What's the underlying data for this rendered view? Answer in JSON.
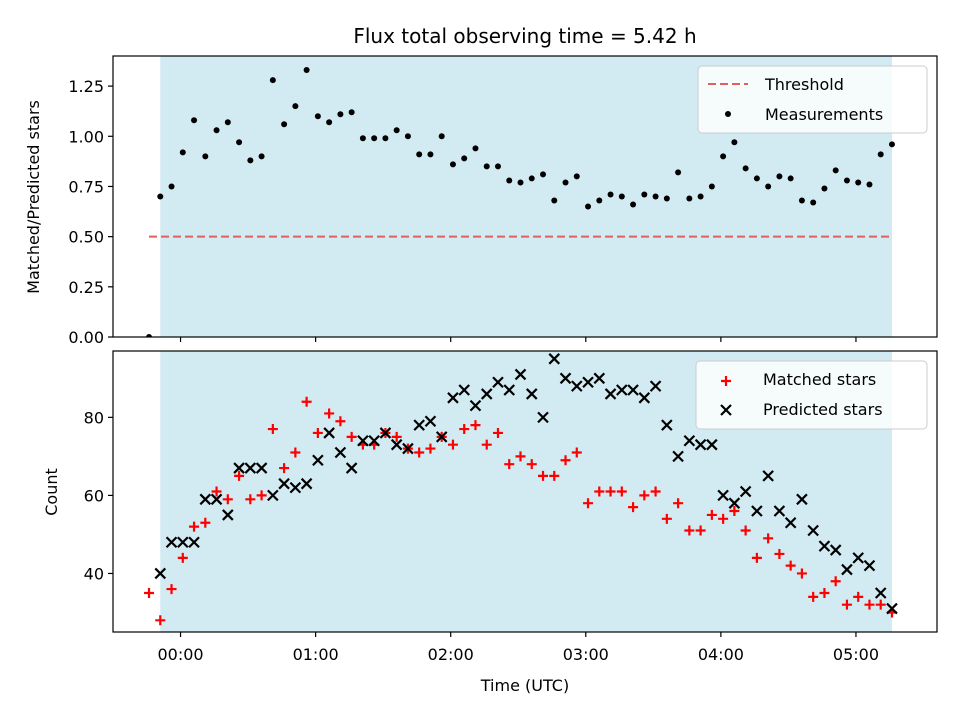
{
  "figure": {
    "title": "Flux total observing time = 5.42 h",
    "xlabel": "Time (UTC)",
    "colors": {
      "shade": "#add8e6",
      "threshold": "#e06060",
      "matched": "#ff0000",
      "predicted": "#000000",
      "measurement": "#000000"
    },
    "xticks": [
      {
        "t": 0,
        "label": "00:00"
      },
      {
        "t": 60,
        "label": "01:00"
      },
      {
        "t": 120,
        "label": "02:00"
      },
      {
        "t": 180,
        "label": "03:00"
      },
      {
        "t": 240,
        "label": "04:00"
      },
      {
        "t": 300,
        "label": "05:00"
      }
    ]
  },
  "chart_data": [
    {
      "type": "scatter",
      "panel": "top",
      "ylabel": "Matched/Predicted stars",
      "xlim_minutes": [
        -30,
        336
      ],
      "ylim": [
        0,
        1.4
      ],
      "yticks": [
        {
          "v": 0,
          "label": "0.00"
        },
        {
          "v": 0.25,
          "label": "0.25"
        },
        {
          "v": 0.5,
          "label": "0.50"
        },
        {
          "v": 0.75,
          "label": "0.75"
        },
        {
          "v": 1.0,
          "label": "1.00"
        },
        {
          "v": 1.25,
          "label": "1.25"
        }
      ],
      "shaded_span_minutes": [
        -9,
        316
      ],
      "threshold": {
        "name": "Threshold",
        "value": 0.5,
        "x_range_minutes": [
          -14,
          316
        ]
      },
      "legend": {
        "position": "top-right",
        "entries": [
          "Threshold",
          "Measurements"
        ]
      },
      "series": [
        {
          "name": "Measurements",
          "marker": "dot",
          "points": [
            [
              -14,
              0.0
            ],
            [
              -9,
              0.7
            ],
            [
              -4,
              0.75
            ],
            [
              1,
              0.92
            ],
            [
              6,
              1.08
            ],
            [
              11,
              0.9
            ],
            [
              16,
              1.03
            ],
            [
              21,
              1.07
            ],
            [
              26,
              0.97
            ],
            [
              31,
              0.88
            ],
            [
              36,
              0.9
            ],
            [
              41,
              1.28
            ],
            [
              46,
              1.06
            ],
            [
              51,
              1.15
            ],
            [
              56,
              1.33
            ],
            [
              61,
              1.1
            ],
            [
              66,
              1.07
            ],
            [
              71,
              1.11
            ],
            [
              76,
              1.12
            ],
            [
              81,
              0.99
            ],
            [
              86,
              0.99
            ],
            [
              91,
              0.99
            ],
            [
              96,
              1.03
            ],
            [
              101,
              1.0
            ],
            [
              106,
              0.91
            ],
            [
              111,
              0.91
            ],
            [
              116,
              1.0
            ],
            [
              121,
              0.86
            ],
            [
              126,
              0.89
            ],
            [
              131,
              0.94
            ],
            [
              136,
              0.85
            ],
            [
              141,
              0.85
            ],
            [
              146,
              0.78
            ],
            [
              151,
              0.77
            ],
            [
              156,
              0.79
            ],
            [
              161,
              0.81
            ],
            [
              166,
              0.68
            ],
            [
              171,
              0.77
            ],
            [
              176,
              0.8
            ],
            [
              181,
              0.65
            ],
            [
              186,
              0.68
            ],
            [
              191,
              0.71
            ],
            [
              196,
              0.7
            ],
            [
              201,
              0.66
            ],
            [
              206,
              0.71
            ],
            [
              211,
              0.7
            ],
            [
              216,
              0.69
            ],
            [
              221,
              0.82
            ],
            [
              226,
              0.69
            ],
            [
              231,
              0.7
            ],
            [
              236,
              0.75
            ],
            [
              241,
              0.9
            ],
            [
              246,
              0.97
            ],
            [
              251,
              0.84
            ],
            [
              256,
              0.79
            ],
            [
              261,
              0.75
            ],
            [
              266,
              0.8
            ],
            [
              271,
              0.79
            ],
            [
              276,
              0.68
            ],
            [
              281,
              0.67
            ],
            [
              286,
              0.74
            ],
            [
              291,
              0.83
            ],
            [
              296,
              0.78
            ],
            [
              301,
              0.77
            ],
            [
              306,
              0.76
            ],
            [
              311,
              0.91
            ],
            [
              316,
              0.96
            ]
          ]
        }
      ]
    },
    {
      "type": "scatter",
      "panel": "bottom",
      "ylabel": "Count",
      "xlim_minutes": [
        -30,
        336
      ],
      "ylim": [
        25,
        97
      ],
      "yticks": [
        {
          "v": 40,
          "label": "40"
        },
        {
          "v": 60,
          "label": "60"
        },
        {
          "v": 80,
          "label": "80"
        }
      ],
      "shaded_span_minutes": [
        -9,
        316
      ],
      "legend": {
        "position": "top-right",
        "entries": [
          "Matched stars",
          "Predicted stars"
        ]
      },
      "series": [
        {
          "name": "Matched stars",
          "marker": "plus",
          "points": [
            [
              -14,
              35
            ],
            [
              -9,
              28
            ],
            [
              -4,
              36
            ],
            [
              1,
              44
            ],
            [
              6,
              52
            ],
            [
              11,
              53
            ],
            [
              16,
              61
            ],
            [
              21,
              59
            ],
            [
              26,
              65
            ],
            [
              31,
              59
            ],
            [
              36,
              60
            ],
            [
              41,
              77
            ],
            [
              46,
              67
            ],
            [
              51,
              71
            ],
            [
              56,
              84
            ],
            [
              61,
              76
            ],
            [
              66,
              81
            ],
            [
              71,
              79
            ],
            [
              76,
              75
            ],
            [
              81,
              73
            ],
            [
              86,
              73
            ],
            [
              91,
              76
            ],
            [
              96,
              75
            ],
            [
              101,
              72
            ],
            [
              106,
              71
            ],
            [
              111,
              72
            ],
            [
              116,
              75
            ],
            [
              121,
              73
            ],
            [
              126,
              77
            ],
            [
              131,
              78
            ],
            [
              136,
              73
            ],
            [
              141,
              76
            ],
            [
              146,
              68
            ],
            [
              151,
              70
            ],
            [
              156,
              68
            ],
            [
              161,
              65
            ],
            [
              166,
              65
            ],
            [
              171,
              69
            ],
            [
              176,
              71
            ],
            [
              181,
              58
            ],
            [
              186,
              61
            ],
            [
              191,
              61
            ],
            [
              196,
              61
            ],
            [
              201,
              57
            ],
            [
              206,
              60
            ],
            [
              211,
              61
            ],
            [
              216,
              54
            ],
            [
              221,
              58
            ],
            [
              226,
              51
            ],
            [
              231,
              51
            ],
            [
              236,
              55
            ],
            [
              241,
              54
            ],
            [
              246,
              56
            ],
            [
              251,
              51
            ],
            [
              256,
              44
            ],
            [
              261,
              49
            ],
            [
              266,
              45
            ],
            [
              271,
              42
            ],
            [
              276,
              40
            ],
            [
              281,
              34
            ],
            [
              286,
              35
            ],
            [
              291,
              38
            ],
            [
              296,
              32
            ],
            [
              301,
              34
            ],
            [
              306,
              32
            ],
            [
              311,
              32
            ],
            [
              316,
              30
            ]
          ]
        },
        {
          "name": "Predicted stars",
          "marker": "x",
          "points": [
            [
              -9,
              40
            ],
            [
              -4,
              48
            ],
            [
              1,
              48
            ],
            [
              6,
              48
            ],
            [
              11,
              59
            ],
            [
              16,
              59
            ],
            [
              21,
              55
            ],
            [
              26,
              67
            ],
            [
              31,
              67
            ],
            [
              36,
              67
            ],
            [
              41,
              60
            ],
            [
              46,
              63
            ],
            [
              51,
              62
            ],
            [
              56,
              63
            ],
            [
              61,
              69
            ],
            [
              66,
              76
            ],
            [
              71,
              71
            ],
            [
              76,
              67
            ],
            [
              81,
              74
            ],
            [
              86,
              74
            ],
            [
              91,
              76
            ],
            [
              96,
              73
            ],
            [
              101,
              72
            ],
            [
              106,
              78
            ],
            [
              111,
              79
            ],
            [
              116,
              75
            ],
            [
              121,
              85
            ],
            [
              126,
              87
            ],
            [
              131,
              83
            ],
            [
              136,
              86
            ],
            [
              141,
              89
            ],
            [
              146,
              87
            ],
            [
              151,
              91
            ],
            [
              156,
              86
            ],
            [
              161,
              80
            ],
            [
              166,
              95
            ],
            [
              171,
              90
            ],
            [
              176,
              88
            ],
            [
              181,
              89
            ],
            [
              186,
              90
            ],
            [
              191,
              86
            ],
            [
              196,
              87
            ],
            [
              201,
              87
            ],
            [
              206,
              85
            ],
            [
              211,
              88
            ],
            [
              216,
              78
            ],
            [
              221,
              70
            ],
            [
              226,
              74
            ],
            [
              231,
              73
            ],
            [
              236,
              73
            ],
            [
              241,
              60
            ],
            [
              246,
              58
            ],
            [
              251,
              61
            ],
            [
              256,
              56
            ],
            [
              261,
              65
            ],
            [
              266,
              56
            ],
            [
              271,
              53
            ],
            [
              276,
              59
            ],
            [
              281,
              51
            ],
            [
              286,
              47
            ],
            [
              291,
              46
            ],
            [
              296,
              41
            ],
            [
              301,
              44
            ],
            [
              306,
              42
            ],
            [
              311,
              35
            ],
            [
              316,
              31
            ]
          ]
        }
      ]
    }
  ]
}
